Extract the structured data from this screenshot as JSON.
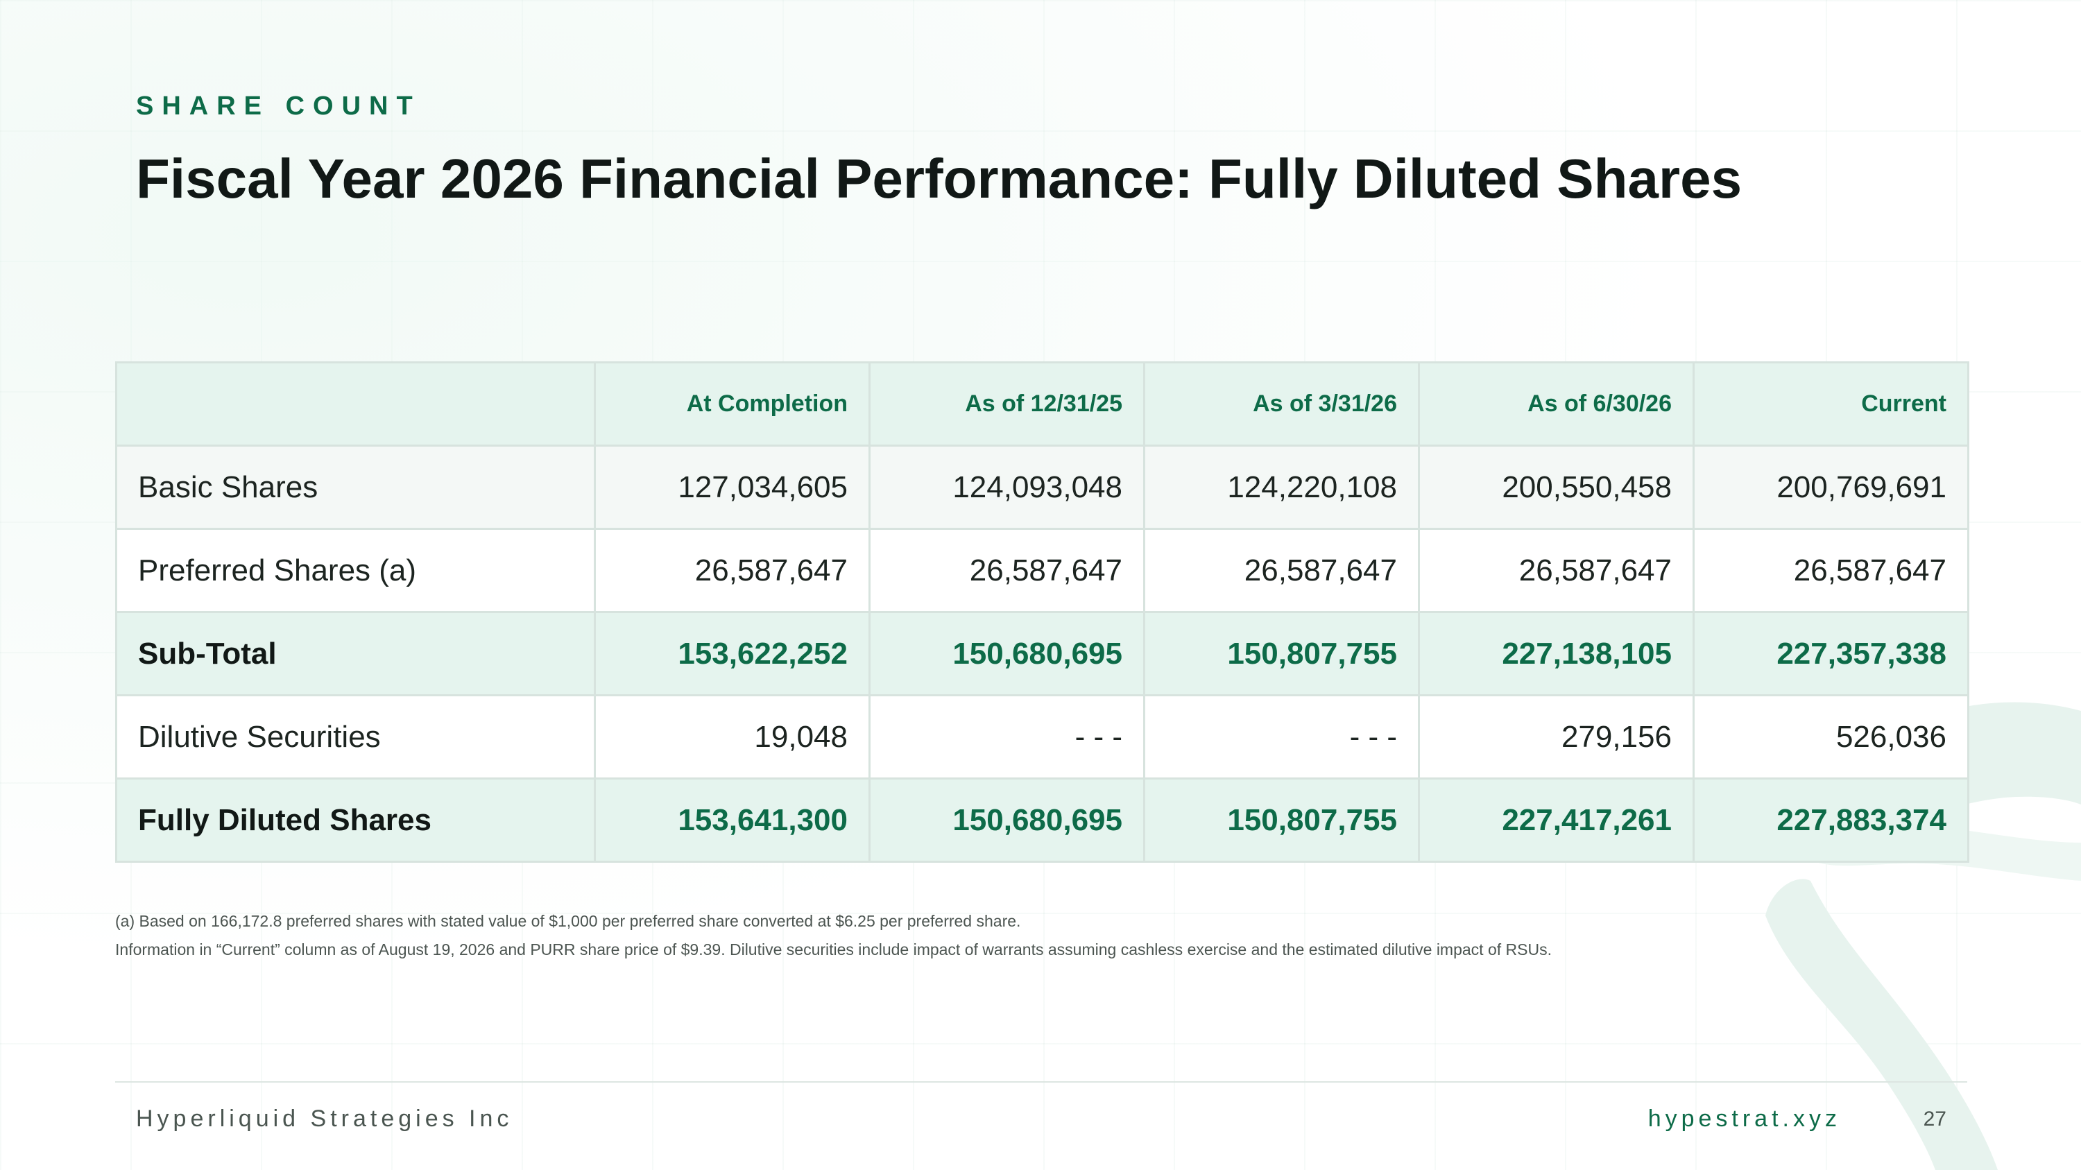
{
  "header": {
    "eyebrow": "SHARE COUNT",
    "title": "Fiscal Year 2026 Financial Performance: Fully Diluted Shares"
  },
  "table": {
    "columns": [
      "",
      "At Completion",
      "As of 12/31/25",
      "As of 3/31/26",
      "As of 6/30/26",
      "Current"
    ],
    "rows": [
      {
        "label": "Basic Shares",
        "values": [
          "127,034,605",
          "124,093,048",
          "124,220,108",
          "200,550,458",
          "200,769,691"
        ]
      },
      {
        "label": "Preferred Shares (a)",
        "values": [
          "26,587,647",
          "26,587,647",
          "26,587,647",
          "26,587,647",
          "26,587,647"
        ]
      },
      {
        "label": "Sub-Total",
        "values": [
          "153,622,252",
          "150,680,695",
          "150,807,755",
          "227,138,105",
          "227,357,338"
        ]
      },
      {
        "label": "Dilutive Securities",
        "values": [
          "19,048",
          "- - -",
          "- - -",
          "279,156",
          "526,036"
        ]
      },
      {
        "label": "Fully Diluted Shares",
        "values": [
          "153,641,300",
          "150,680,695",
          "150,807,755",
          "227,417,261",
          "227,883,374"
        ]
      }
    ]
  },
  "footnotes": [
    "(a) Based on 166,172.8 preferred shares with stated value of $1,000 per preferred share converted at $6.25 per preferred share.",
    "Information in “Current” column as of August 19, 2026 and PURR share price of $9.39. Dilutive securities include impact of warrants assuming cashless exercise and the estimated dilutive impact of RSUs."
  ],
  "footer": {
    "company": "Hyperliquid Strategies Inc",
    "website": "hypestrat.xyz",
    "page_number": "27"
  },
  "colors": {
    "accent": "#0d6b48",
    "header_fill": "#e5f4ee",
    "border": "#d7e3de",
    "text": "#111816"
  },
  "icons": {
    "background_mark": "brand-logo-watermark"
  }
}
